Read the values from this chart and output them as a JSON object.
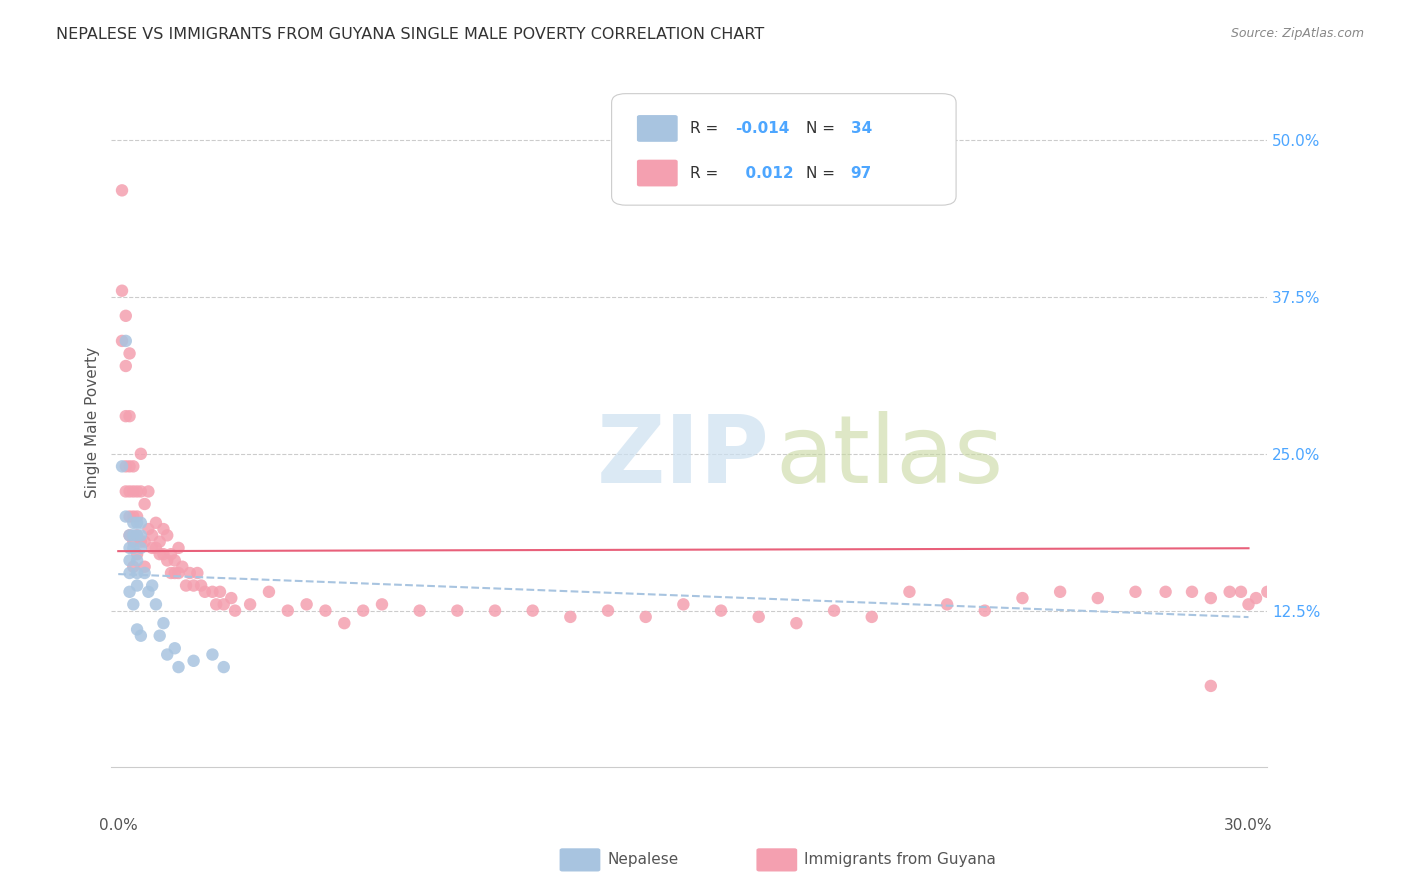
{
  "title": "NEPALESE VS IMMIGRANTS FROM GUYANA SINGLE MALE POVERTY CORRELATION CHART",
  "source": "Source: ZipAtlas.com",
  "ylabel": "Single Male Poverty",
  "yticks": [
    "50.0%",
    "37.5%",
    "25.0%",
    "12.5%"
  ],
  "ytick_vals": [
    0.5,
    0.375,
    0.25,
    0.125
  ],
  "xlim": [
    0.0,
    0.3
  ],
  "ylim": [
    0.0,
    0.55
  ],
  "legend_label1": "Nepalese",
  "legend_label2": "Immigrants from Guyana",
  "r1": "-0.014",
  "n1": "34",
  "r2": "0.012",
  "n2": "97",
  "color_blue": "#a8c4e0",
  "color_pink": "#f4a0b0",
  "color_blue_dark": "#7bafd4",
  "color_pink_dark": "#e8607a",
  "nepalese_x": [
    0.001,
    0.002,
    0.002,
    0.003,
    0.003,
    0.003,
    0.003,
    0.003,
    0.004,
    0.004,
    0.004,
    0.004,
    0.005,
    0.005,
    0.005,
    0.005,
    0.005,
    0.005,
    0.006,
    0.006,
    0.006,
    0.006,
    0.007,
    0.008,
    0.009,
    0.01,
    0.011,
    0.012,
    0.013,
    0.015,
    0.016,
    0.02,
    0.025,
    0.028
  ],
  "nepalese_y": [
    0.24,
    0.34,
    0.2,
    0.185,
    0.175,
    0.165,
    0.155,
    0.14,
    0.195,
    0.185,
    0.175,
    0.13,
    0.195,
    0.185,
    0.165,
    0.155,
    0.145,
    0.11,
    0.195,
    0.185,
    0.175,
    0.105,
    0.155,
    0.14,
    0.145,
    0.13,
    0.105,
    0.115,
    0.09,
    0.095,
    0.08,
    0.085,
    0.09,
    0.08
  ],
  "guyana_x": [
    0.001,
    0.001,
    0.001,
    0.002,
    0.002,
    0.002,
    0.002,
    0.002,
    0.003,
    0.003,
    0.003,
    0.003,
    0.003,
    0.003,
    0.004,
    0.004,
    0.004,
    0.004,
    0.004,
    0.005,
    0.005,
    0.005,
    0.005,
    0.006,
    0.006,
    0.006,
    0.007,
    0.007,
    0.007,
    0.008,
    0.008,
    0.009,
    0.009,
    0.01,
    0.01,
    0.011,
    0.011,
    0.012,
    0.012,
    0.013,
    0.013,
    0.014,
    0.014,
    0.015,
    0.015,
    0.016,
    0.016,
    0.017,
    0.018,
    0.019,
    0.02,
    0.021,
    0.022,
    0.023,
    0.025,
    0.026,
    0.027,
    0.028,
    0.03,
    0.031,
    0.035,
    0.04,
    0.045,
    0.05,
    0.055,
    0.06,
    0.065,
    0.07,
    0.08,
    0.09,
    0.1,
    0.11,
    0.12,
    0.13,
    0.14,
    0.15,
    0.16,
    0.17,
    0.18,
    0.19,
    0.2,
    0.21,
    0.22,
    0.23,
    0.24,
    0.25,
    0.26,
    0.27,
    0.278,
    0.285,
    0.29,
    0.295,
    0.298,
    0.3,
    0.302,
    0.305,
    0.29
  ],
  "guyana_y": [
    0.46,
    0.38,
    0.34,
    0.36,
    0.32,
    0.28,
    0.24,
    0.22,
    0.33,
    0.28,
    0.24,
    0.22,
    0.2,
    0.185,
    0.24,
    0.22,
    0.2,
    0.18,
    0.16,
    0.22,
    0.2,
    0.185,
    0.17,
    0.25,
    0.22,
    0.18,
    0.21,
    0.18,
    0.16,
    0.22,
    0.19,
    0.185,
    0.175,
    0.195,
    0.175,
    0.18,
    0.17,
    0.19,
    0.17,
    0.185,
    0.165,
    0.17,
    0.155,
    0.165,
    0.155,
    0.175,
    0.155,
    0.16,
    0.145,
    0.155,
    0.145,
    0.155,
    0.145,
    0.14,
    0.14,
    0.13,
    0.14,
    0.13,
    0.135,
    0.125,
    0.13,
    0.14,
    0.125,
    0.13,
    0.125,
    0.115,
    0.125,
    0.13,
    0.125,
    0.125,
    0.125,
    0.125,
    0.12,
    0.125,
    0.12,
    0.13,
    0.125,
    0.12,
    0.115,
    0.125,
    0.12,
    0.14,
    0.13,
    0.125,
    0.135,
    0.14,
    0.135,
    0.14,
    0.14,
    0.14,
    0.135,
    0.14,
    0.14,
    0.13,
    0.135,
    0.14,
    0.065
  ]
}
